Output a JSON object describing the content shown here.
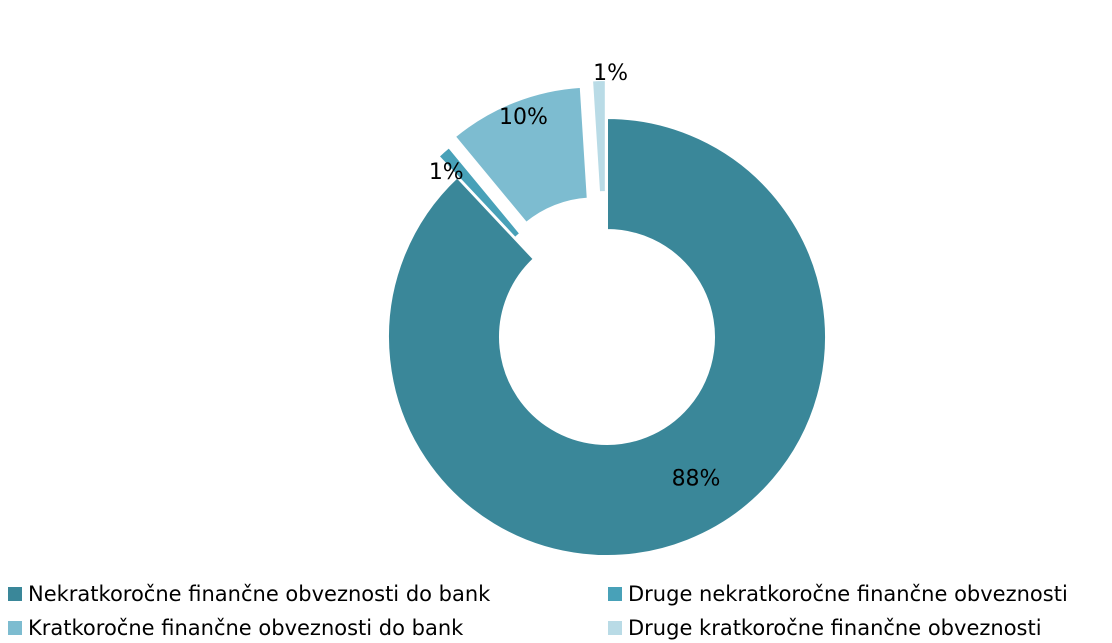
{
  "chart_data": {
    "type": "pie",
    "variant": "donut-exploded",
    "slices": [
      {
        "name": "Nekratkoročne finančne obveznosti do bank",
        "value": 88,
        "label": "88%",
        "color": "#3a8799"
      },
      {
        "name": "Druge nekratkoročne finančne obveznosti",
        "value": 1,
        "label": "1%",
        "color": "#48a1b8"
      },
      {
        "name": "Kratkoročne finančne obveznosti do bank",
        "value": 10,
        "label": "10%",
        "color": "#7dbcd0"
      },
      {
        "name": "Druge kratkoročne finančne obveznosti",
        "value": 1,
        "label": "1%",
        "color": "#b9dbe6"
      }
    ],
    "legend_position": "bottom"
  }
}
